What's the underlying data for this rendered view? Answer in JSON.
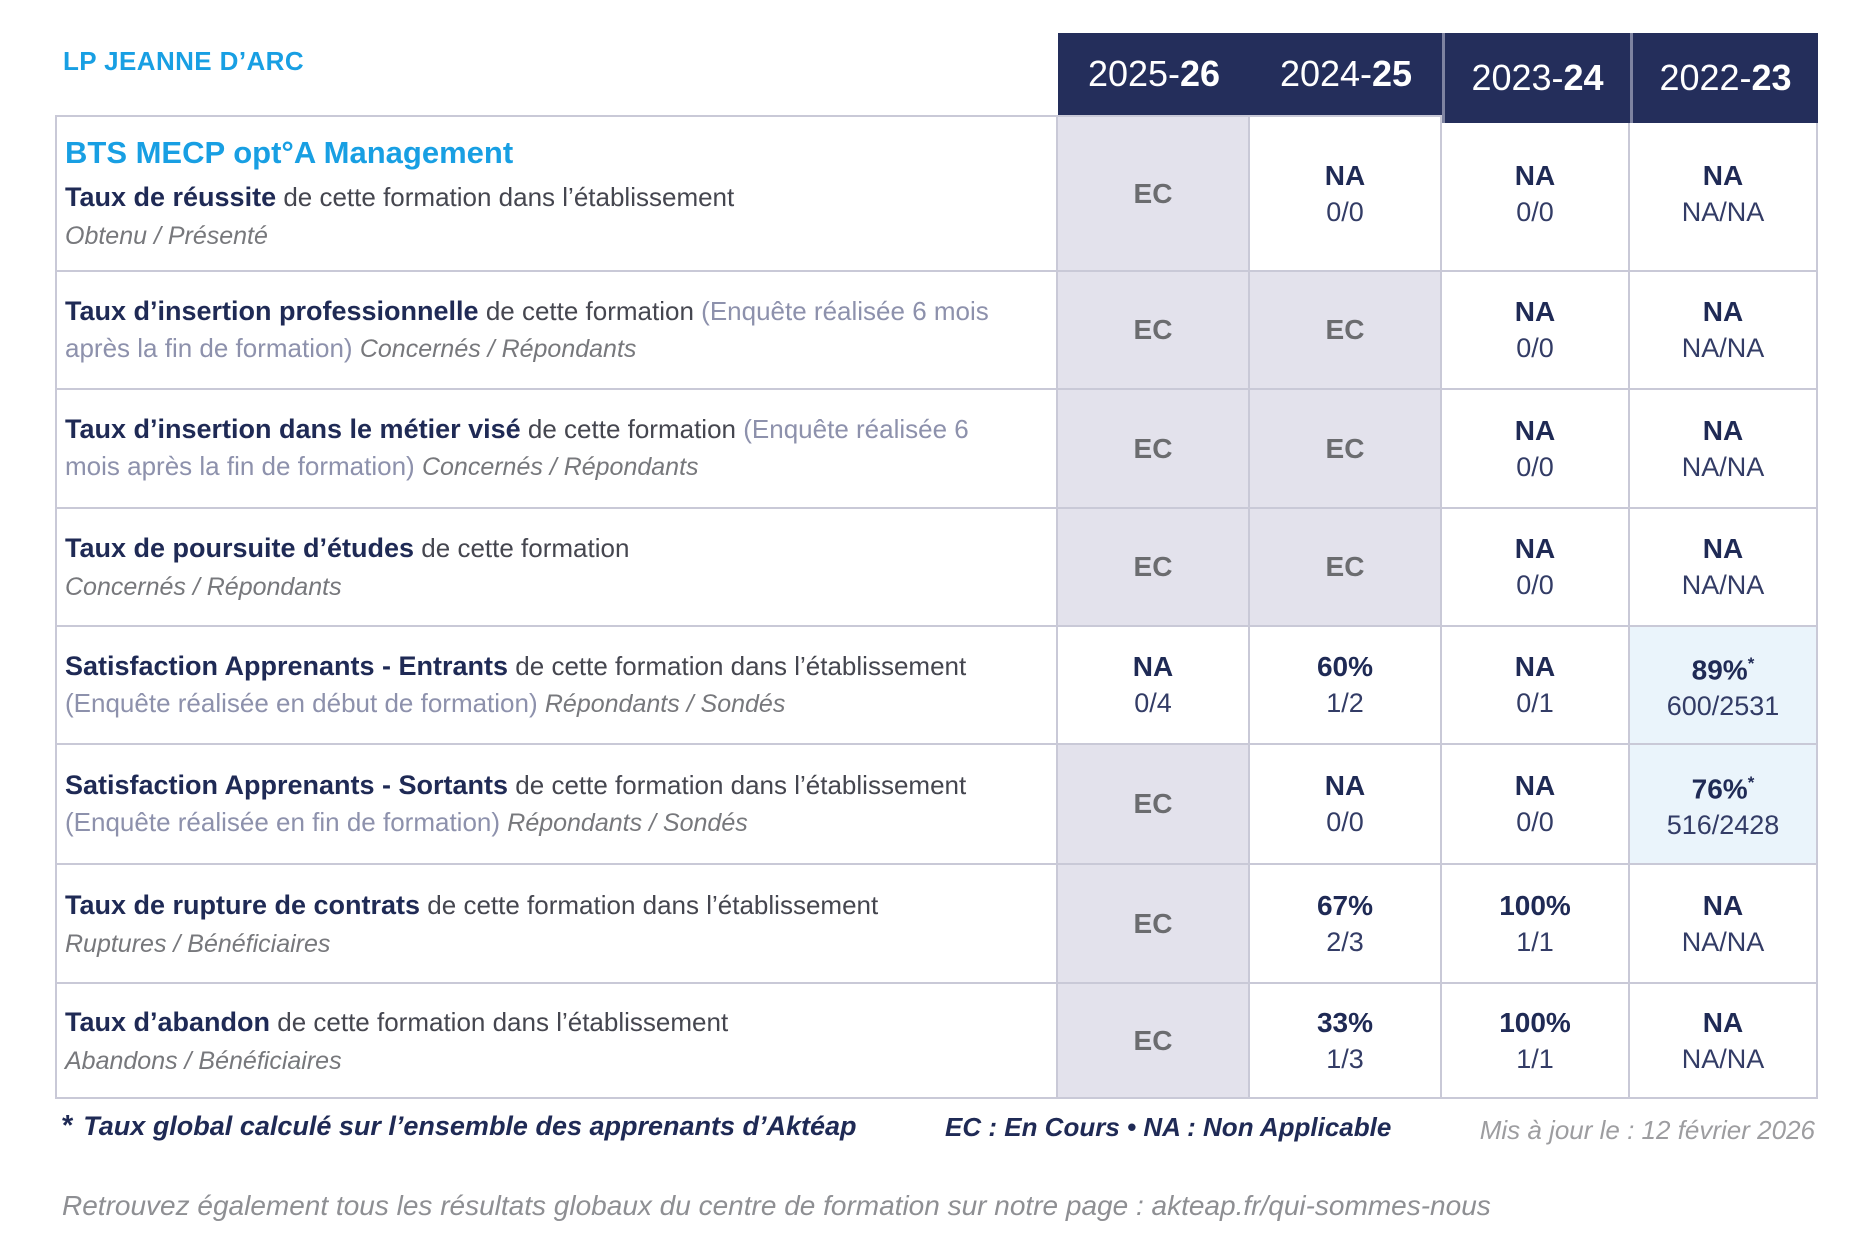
{
  "brand": "LP JEANNE D’ARC",
  "course_title": "BTS MECP opt°A Management",
  "header": {
    "years": [
      {
        "pre": "2025-",
        "bold": "26"
      },
      {
        "pre": "2024-",
        "bold": "25"
      },
      {
        "pre": "2023-",
        "bold": "24"
      },
      {
        "pre": "2022-",
        "bold": "23"
      }
    ]
  },
  "rows": [
    {
      "title": "Taux de réussite",
      "desc": "de cette formation dans l’établissement",
      "paren": "",
      "sub_inline": "",
      "sub_block": "Obtenu / Présenté",
      "cells": [
        {
          "value": "EC",
          "star": "",
          "fraction": "",
          "style": "ec"
        },
        {
          "value": "NA",
          "star": "",
          "fraction": "0/0",
          "style": "plain"
        },
        {
          "value": "NA",
          "star": "",
          "fraction": "0/0",
          "style": "plain"
        },
        {
          "value": "NA",
          "star": "",
          "fraction": "NA/NA",
          "style": "plain"
        }
      ]
    },
    {
      "title": "Taux d’insertion professionnelle",
      "desc": "de cette formation",
      "paren": "(Enquête réalisée 6 mois après la fin de formation)",
      "sub_inline": "Concernés / Répondants",
      "sub_block": "",
      "cells": [
        {
          "value": "EC",
          "star": "",
          "fraction": "",
          "style": "ec"
        },
        {
          "value": "EC",
          "star": "",
          "fraction": "",
          "style": "ec"
        },
        {
          "value": "NA",
          "star": "",
          "fraction": "0/0",
          "style": "plain"
        },
        {
          "value": "NA",
          "star": "",
          "fraction": "NA/NA",
          "style": "plain"
        }
      ]
    },
    {
      "title": "Taux d’insertion dans le métier visé",
      "desc": "de cette formation",
      "paren": "(Enquête réalisée 6 mois après la fin de formation)",
      "sub_inline": "Concernés / Répondants",
      "sub_block": "",
      "cells": [
        {
          "value": "EC",
          "star": "",
          "fraction": "",
          "style": "ec"
        },
        {
          "value": "EC",
          "star": "",
          "fraction": "",
          "style": "ec"
        },
        {
          "value": "NA",
          "star": "",
          "fraction": "0/0",
          "style": "plain"
        },
        {
          "value": "NA",
          "star": "",
          "fraction": "NA/NA",
          "style": "plain"
        }
      ]
    },
    {
      "title": "Taux de poursuite d’études",
      "desc": "de cette formation",
      "paren": "",
      "sub_inline": "",
      "sub_block": "Concernés / Répondants",
      "cells": [
        {
          "value": "EC",
          "star": "",
          "fraction": "",
          "style": "ec"
        },
        {
          "value": "EC",
          "star": "",
          "fraction": "",
          "style": "ec"
        },
        {
          "value": "NA",
          "star": "",
          "fraction": "0/0",
          "style": "plain"
        },
        {
          "value": "NA",
          "star": "",
          "fraction": "NA/NA",
          "style": "plain"
        }
      ]
    },
    {
      "title": "Satisfaction Apprenants - Entrants",
      "desc": "de cette formation dans l’établissement",
      "paren": "(Enquête réalisée en début de formation)",
      "sub_inline": "Répondants / Sondés",
      "sub_block": "",
      "cells": [
        {
          "value": "NA",
          "star": "",
          "fraction": "0/4",
          "style": "plain"
        },
        {
          "value": "60%",
          "star": "",
          "fraction": "1/2",
          "style": "plain"
        },
        {
          "value": "NA",
          "star": "",
          "fraction": "0/1",
          "style": "plain"
        },
        {
          "value": "89%",
          "star": "*",
          "fraction": "600/2531",
          "style": "highlight"
        }
      ]
    },
    {
      "title": "Satisfaction Apprenants - Sortants",
      "desc": "de cette formation dans l’établissement",
      "paren": "(Enquête réalisée en fin de formation)",
      "sub_inline": "Répondants / Sondés",
      "sub_block": "",
      "cells": [
        {
          "value": "EC",
          "star": "",
          "fraction": "",
          "style": "ec"
        },
        {
          "value": "NA",
          "star": "",
          "fraction": "0/0",
          "style": "plain"
        },
        {
          "value": "NA",
          "star": "",
          "fraction": "0/0",
          "style": "plain"
        },
        {
          "value": "76%",
          "star": "*",
          "fraction": "516/2428",
          "style": "highlight"
        }
      ]
    },
    {
      "title": "Taux de rupture de contrats",
      "desc": "de cette formation dans l’établissement",
      "paren": "",
      "sub_inline": "",
      "sub_block": "Ruptures / Bénéficiaires",
      "cells": [
        {
          "value": "EC",
          "star": "",
          "fraction": "",
          "style": "ec"
        },
        {
          "value": "67%",
          "star": "",
          "fraction": "2/3",
          "style": "plain"
        },
        {
          "value": "100%",
          "star": "",
          "fraction": "1/1",
          "style": "plain"
        },
        {
          "value": "NA",
          "star": "",
          "fraction": "NA/NA",
          "style": "plain"
        }
      ]
    },
    {
      "title": "Taux d’abandon",
      "desc": "de cette formation dans l’établissement",
      "paren": "",
      "sub_inline": "",
      "sub_block": "Abandons / Bénéficiaires",
      "cells": [
        {
          "value": "EC",
          "star": "",
          "fraction": "",
          "style": "ec"
        },
        {
          "value": "33%",
          "star": "",
          "fraction": "1/3",
          "style": "plain"
        },
        {
          "value": "100%",
          "star": "",
          "fraction": "1/1",
          "style": "plain"
        },
        {
          "value": "NA",
          "star": "",
          "fraction": "NA/NA",
          "style": "plain"
        }
      ]
    }
  ],
  "legend": {
    "star": "*",
    "note": "Taux global calculé sur l’ensemble des apprenants d’Aktéap",
    "abbrev": "EC : En Cours  •  NA : Non Applicable",
    "updated": "Mis à jour le : 12 février 2026"
  },
  "footer_line": "Retrouvez également tous les résultats globaux du centre de formation sur notre page : akteap.fr/qui-sommes-nous",
  "colors": {
    "accent_blue": "#189fe3",
    "header_navy": "#242e5b",
    "text_navy": "#1f2a55",
    "cell_ec_bg": "#e3e2ec",
    "cell_highlight_bg": "#eaf4fb",
    "grid_line": "#c9c9d7"
  }
}
